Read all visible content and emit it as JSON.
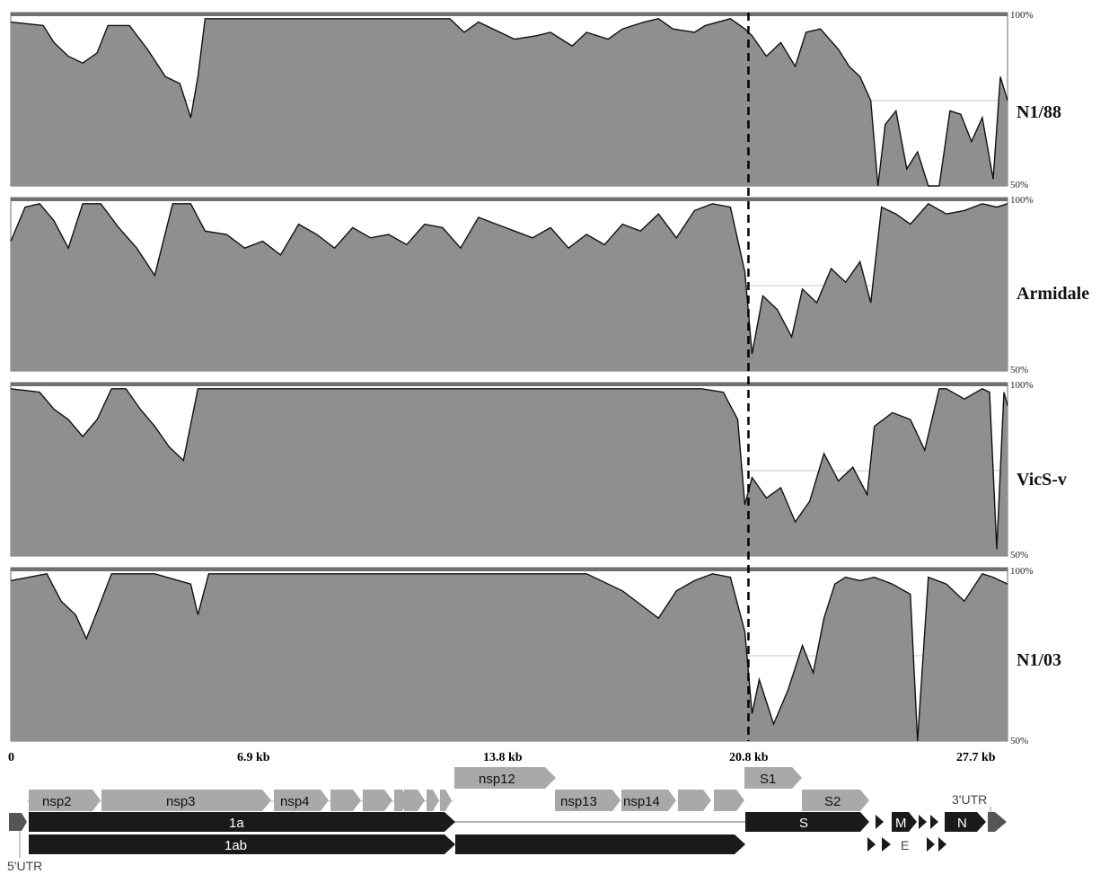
{
  "colors": {
    "fill": "#8f8f8f",
    "frame": "#6e6e6e",
    "topbar": "#707070",
    "dark_gene": "#1a1a1a",
    "light_gene": "#a9a9a9",
    "grid": "#c8c8c8"
  },
  "chart_data": {
    "type": "area",
    "xlabel": "",
    "ylabel": "",
    "xlim": [
      0,
      27.7
    ],
    "ylim": [
      50,
      100
    ],
    "x_ticks": [
      "0",
      "6.9 kb",
      "13.8 kb",
      "20.8 kb",
      "27.7 kb"
    ],
    "y_ticks": [
      "100%",
      "50%"
    ],
    "dashed_marker_x": 20.5,
    "series": [
      {
        "name": "N1/88",
        "x": [
          0,
          0.9,
          1.2,
          1.6,
          2.0,
          2.4,
          2.7,
          3.3,
          3.8,
          4.3,
          4.7,
          5.0,
          5.2,
          5.4,
          6.0,
          8.0,
          10.0,
          12.2,
          12.6,
          13.0,
          14.0,
          14.6,
          15.0,
          15.6,
          16.0,
          16.6,
          17.0,
          17.6,
          18.0,
          18.4,
          19.0,
          19.3,
          20.0,
          20.4,
          20.6,
          21.0,
          21.4,
          21.8,
          22.1,
          22.5,
          23.0,
          23.3,
          23.6,
          23.9,
          24.1,
          24.3,
          24.6,
          24.9,
          25.2,
          25.5,
          25.8,
          26.1,
          26.4,
          26.7,
          27.0,
          27.3,
          27.5,
          27.7
        ],
        "values": [
          98,
          97,
          92,
          88,
          86,
          89,
          97,
          97,
          90,
          82,
          80,
          70,
          82,
          99,
          99,
          99,
          99,
          99,
          95,
          98,
          93,
          94,
          95,
          91,
          95,
          93,
          96,
          98,
          99,
          96,
          95,
          97,
          99,
          96,
          94,
          88,
          92,
          85,
          95,
          96,
          90,
          85,
          82,
          75,
          50,
          68,
          72,
          55,
          60,
          50,
          50,
          72,
          71,
          63,
          70,
          52,
          82,
          75
        ]
      },
      {
        "name": "Armidale",
        "x": [
          0,
          0.4,
          0.8,
          1.2,
          1.6,
          2.0,
          2.5,
          3.0,
          3.5,
          4.0,
          4.5,
          5.0,
          5.4,
          6.0,
          6.5,
          7.0,
          7.5,
          8.0,
          8.5,
          9.0,
          9.5,
          10.0,
          10.5,
          11.0,
          11.5,
          12.0,
          12.5,
          13.0,
          13.5,
          14.0,
          14.5,
          15.0,
          15.5,
          16.0,
          16.5,
          17.0,
          17.5,
          18.0,
          18.5,
          19.0,
          19.5,
          20.0,
          20.4,
          20.6,
          20.9,
          21.3,
          21.7,
          22.0,
          22.4,
          22.8,
          23.2,
          23.6,
          23.9,
          24.2,
          24.6,
          25.0,
          25.5,
          26.0,
          26.5,
          27.0,
          27.4,
          27.7
        ],
        "values": [
          88,
          98,
          99,
          94,
          86,
          99,
          99,
          92,
          86,
          78,
          99,
          99,
          91,
          90,
          86,
          88,
          84,
          93,
          90,
          86,
          92,
          89,
          90,
          87,
          93,
          92,
          86,
          95,
          93,
          91,
          89,
          92,
          86,
          90,
          87,
          93,
          91,
          96,
          89,
          97,
          99,
          98,
          79,
          55,
          72,
          68,
          60,
          74,
          70,
          80,
          76,
          82,
          70,
          98,
          96,
          93,
          99,
          96,
          97,
          99,
          98,
          99
        ]
      },
      {
        "name": "VicS-v",
        "x": [
          0,
          0.8,
          1.2,
          1.6,
          2.0,
          2.4,
          2.8,
          3.2,
          3.6,
          4.0,
          4.4,
          4.8,
          5.2,
          6.0,
          8.0,
          10.0,
          12.0,
          14.0,
          16.0,
          18.0,
          19.2,
          19.8,
          20.2,
          20.4,
          20.6,
          21.0,
          21.4,
          21.8,
          22.2,
          22.6,
          23.0,
          23.4,
          23.8,
          24.0,
          24.5,
          25.0,
          25.4,
          25.8,
          26.0,
          26.5,
          27.0,
          27.2,
          27.4,
          27.6,
          27.7
        ],
        "values": [
          99,
          98,
          93,
          90,
          85,
          90,
          99,
          99,
          93,
          88,
          82,
          78,
          99,
          99,
          99,
          99,
          99,
          99,
          99,
          99,
          99,
          98,
          90,
          65,
          73,
          67,
          70,
          60,
          66,
          80,
          72,
          76,
          68,
          88,
          92,
          90,
          81,
          99,
          99,
          96,
          99,
          98,
          52,
          98,
          94
        ]
      },
      {
        "name": "N1/03",
        "x": [
          0,
          1.0,
          1.4,
          1.8,
          2.1,
          2.4,
          2.8,
          3.2,
          4.0,
          5.0,
          5.2,
          5.5,
          6.0,
          8.0,
          10.0,
          12.0,
          14.0,
          16.0,
          17.0,
          17.5,
          18.0,
          18.5,
          19.0,
          19.5,
          20.0,
          20.4,
          20.6,
          20.8,
          21.2,
          21.6,
          22.0,
          22.3,
          22.6,
          22.9,
          23.2,
          23.6,
          24.0,
          24.5,
          25.0,
          25.2,
          25.5,
          26.0,
          26.5,
          27.0,
          27.3,
          27.7
        ],
        "values": [
          97,
          99,
          91,
          87,
          80,
          88,
          99,
          99,
          99,
          96,
          87,
          99,
          99,
          99,
          99,
          99,
          99,
          99,
          94,
          90,
          86,
          94,
          97,
          99,
          98,
          82,
          58,
          68,
          55,
          65,
          78,
          70,
          86,
          96,
          98,
          97,
          98,
          96,
          93,
          50,
          98,
          96,
          91,
          99,
          98,
          96
        ]
      }
    ]
  },
  "panels": [
    {
      "label": "N1/88",
      "pct_top": "100%",
      "pct_bottom": "50%"
    },
    {
      "label": "Armidale",
      "pct_top": "100%",
      "pct_bottom": "50%"
    },
    {
      "label": "VicS-v",
      "pct_top": "100%",
      "pct_bottom": "50%"
    },
    {
      "label": "N1/03",
      "pct_top": "100%",
      "pct_bottom": "50%"
    }
  ],
  "x_axis": {
    "ticks": [
      "0",
      "6.9 kb",
      "13.8 kb",
      "20.8 kb",
      "27.7 kb"
    ]
  },
  "genome_map": {
    "utr5": "5'UTR",
    "utr3": "3'UTR",
    "orf_1a": "1a",
    "orf_1ab": "1ab",
    "s": "S",
    "s1": "S1",
    "s2": "S2",
    "m": "M",
    "e": "E",
    "n": "N",
    "nsp": [
      "nsp2",
      "nsp3",
      "nsp4",
      "nsp12",
      "nsp13",
      "nsp14"
    ]
  }
}
